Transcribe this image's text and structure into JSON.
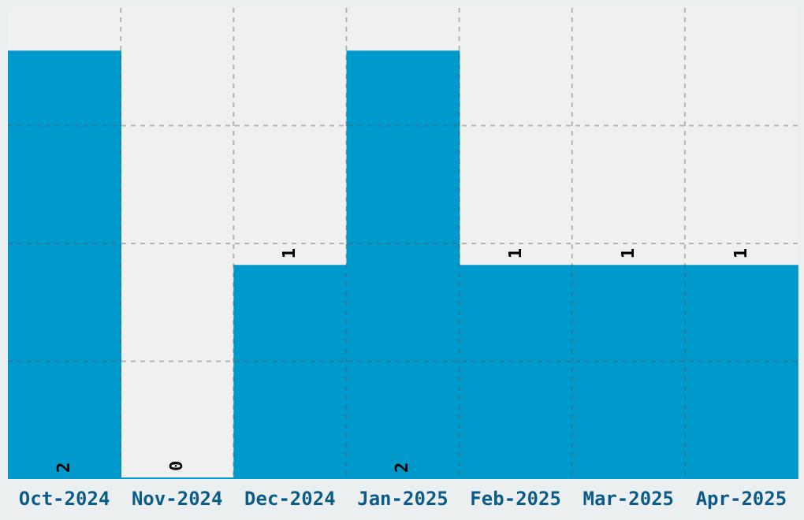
{
  "chart_data": {
    "type": "bar",
    "categories": [
      "Oct-2024",
      "Nov-2024",
      "Dec-2024",
      "Jan-2025",
      "Feb-2025",
      "Mar-2025",
      "Apr-2025"
    ],
    "values": [
      2,
      0,
      1,
      2,
      1,
      1,
      1
    ],
    "color": "#0099cc",
    "data_labels": true,
    "ylim": [
      0,
      2.2
    ],
    "grid": true,
    "tick_labels": "x"
  }
}
